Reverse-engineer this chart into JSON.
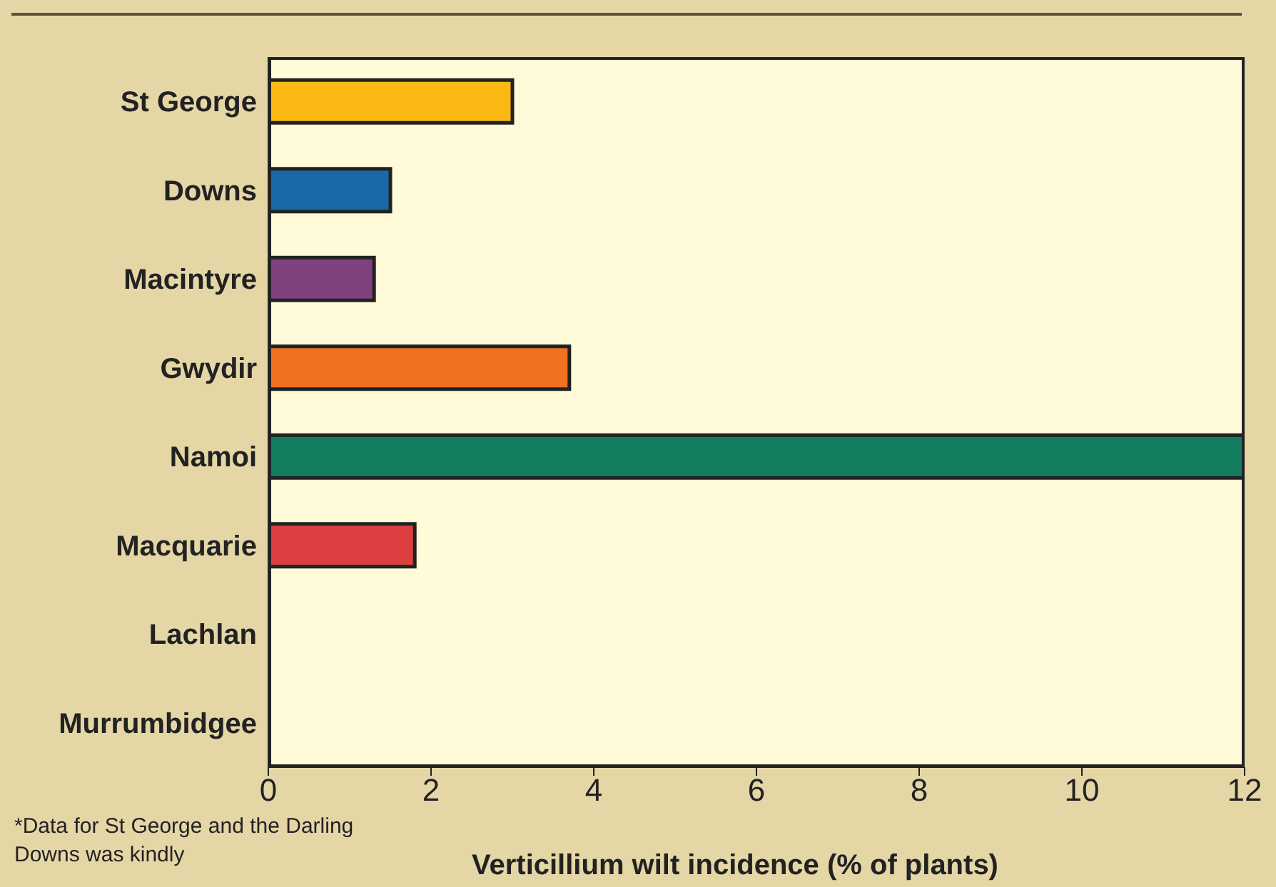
{
  "chart_data": {
    "type": "bar",
    "orientation": "horizontal",
    "categories": [
      "St George",
      "Downs",
      "Macintyre",
      "Gwydir",
      "Namoi",
      "Macquarie",
      "Lachlan",
      "Murrumbidgee"
    ],
    "values": [
      3.0,
      1.5,
      1.3,
      3.7,
      12.0,
      1.8,
      0,
      0
    ],
    "colors": [
      "#fdb913",
      "#1a69a7",
      "#80417f",
      "#f27021",
      "#127d5f",
      "#dc4040",
      "#808080",
      "#808080"
    ],
    "xlabel": "Verticillium wilt incidence (% of plants)",
    "xlim": [
      0,
      12
    ],
    "xticks": [
      0,
      2,
      4,
      6,
      8,
      10,
      12
    ],
    "annotations": [
      "*Data for St George and the Darling Downs was kindly"
    ]
  }
}
